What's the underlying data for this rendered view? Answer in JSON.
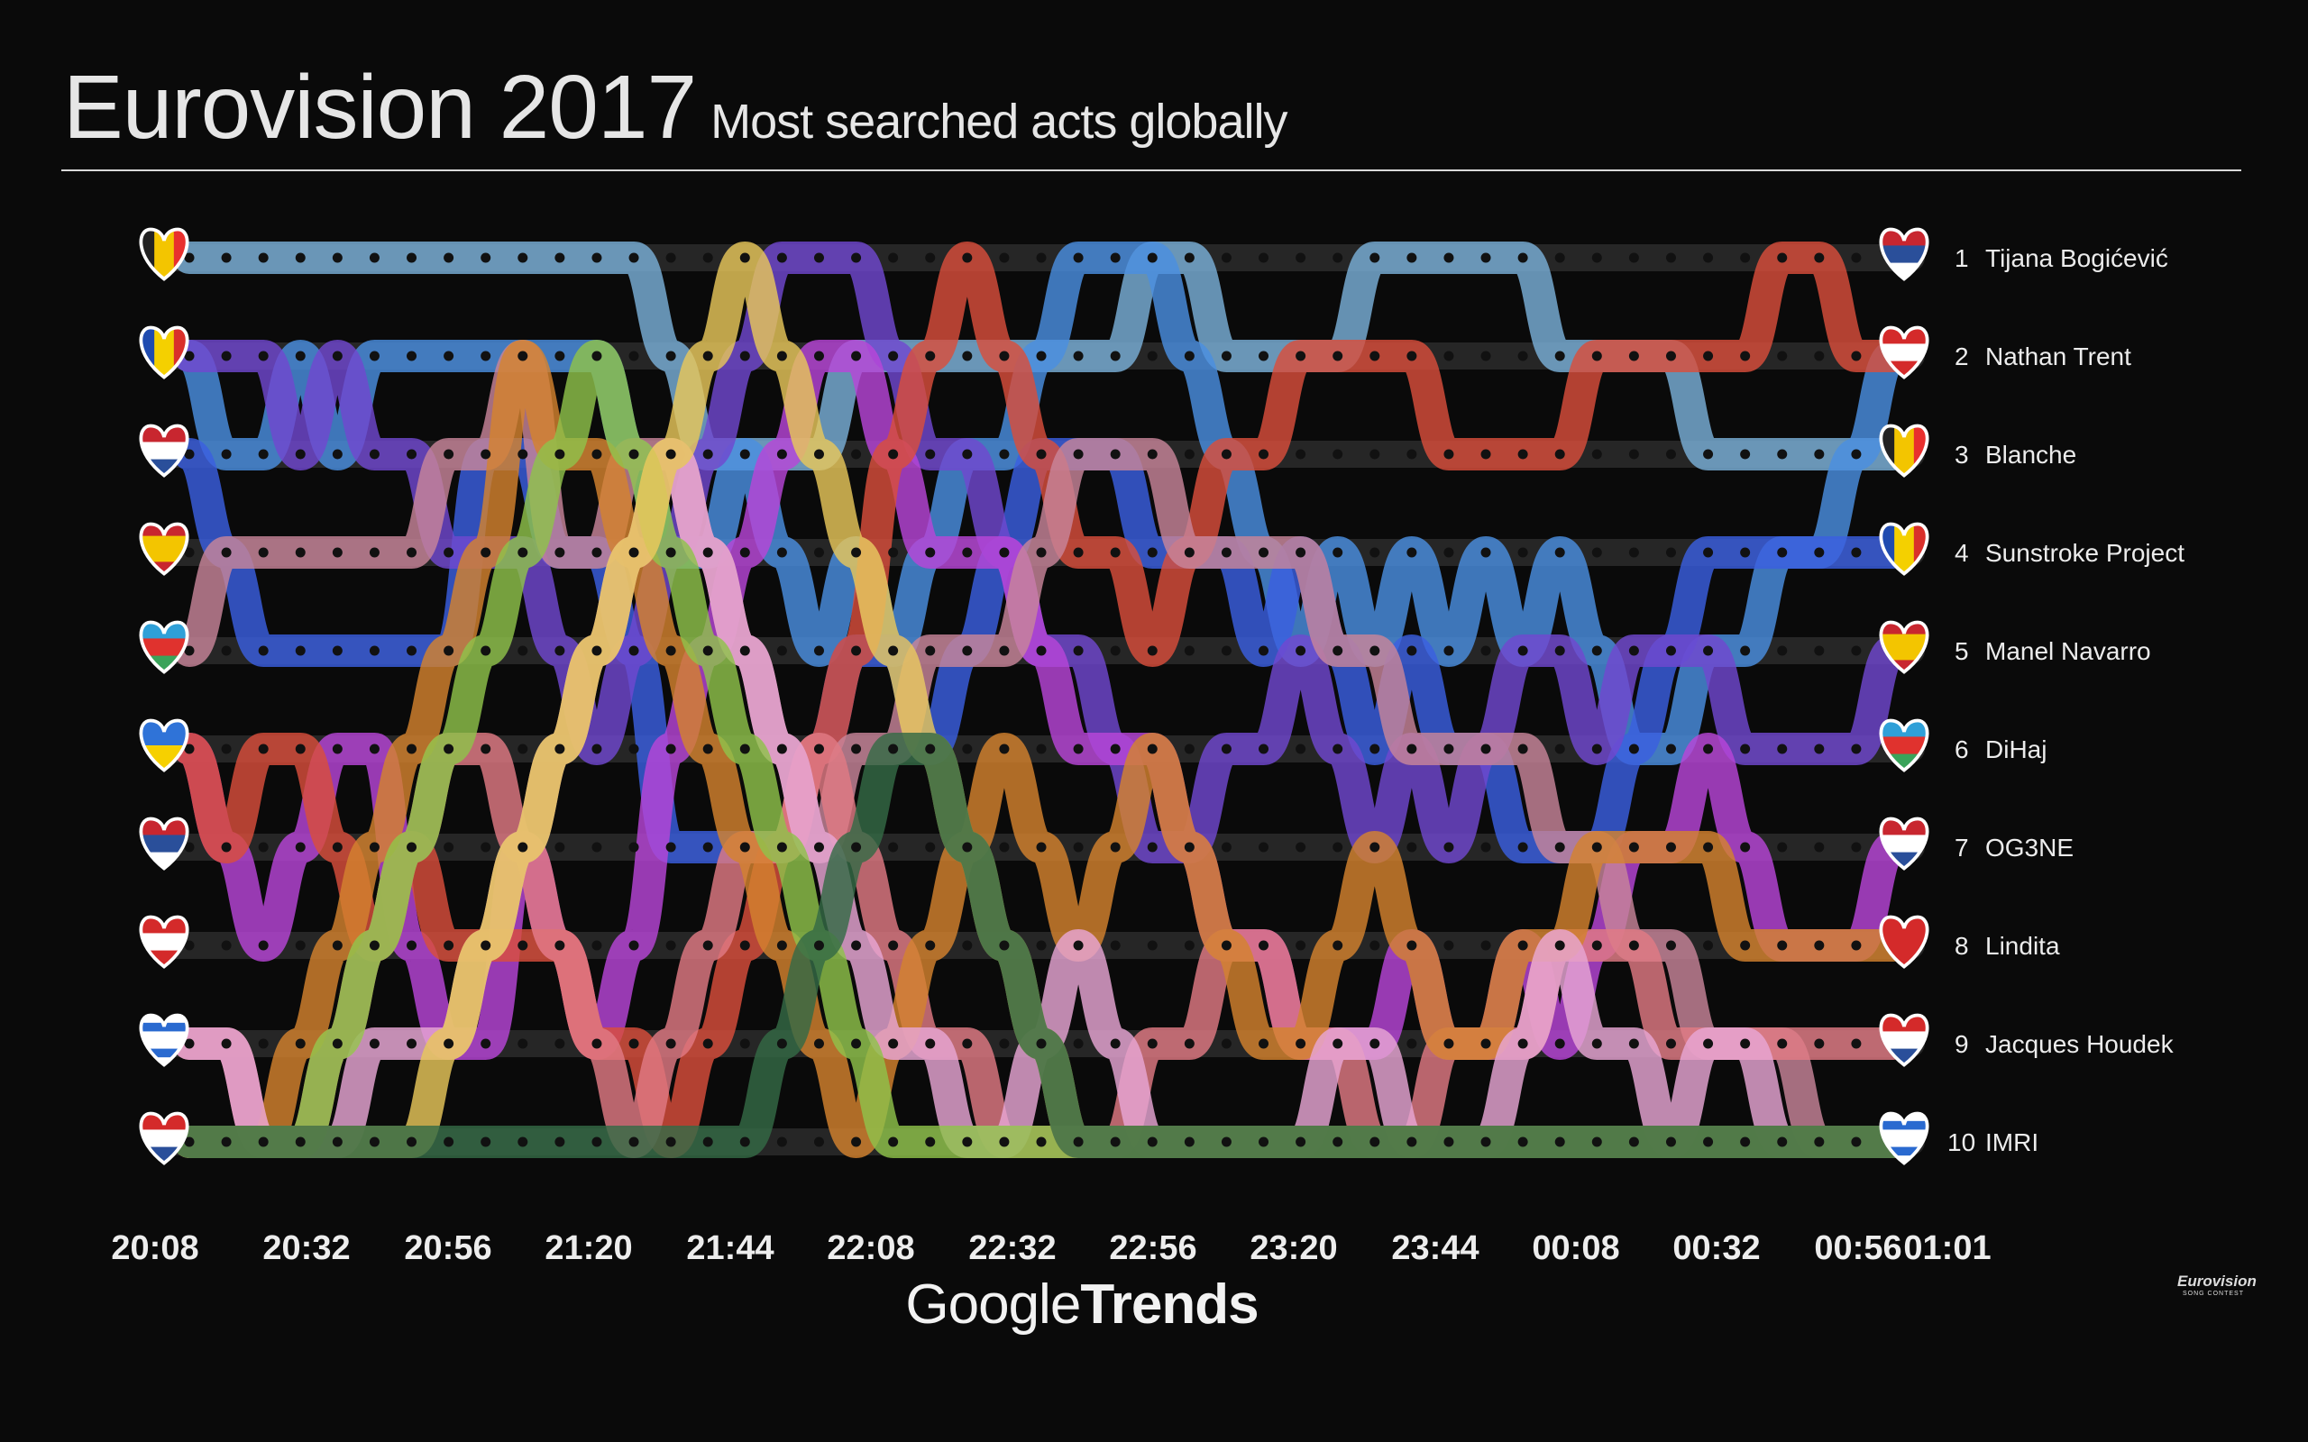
{
  "header": {
    "title": "Eurovision 2017",
    "subtitle": "Most searched acts globally"
  },
  "footer": {
    "brand_google": "Google",
    "brand_trends": "Trends",
    "event_logo": "Eurovision",
    "event_logo_sub": "SONG CONTEST"
  },
  "chart_data": {
    "type": "bump",
    "title": "Eurovision 2017",
    "subtitle": "Most searched acts globally",
    "x_ticks": [
      "20:08",
      "20:32",
      "20:56",
      "21:20",
      "21:44",
      "22:08",
      "22:32",
      "22:56",
      "23:20",
      "23:44",
      "00:08",
      "00:32",
      "00:56",
      "01:01"
    ],
    "rank_range": [
      1,
      10
    ],
    "start_labels": [
      {
        "rank": 1,
        "flag": "Belgium"
      },
      {
        "rank": 2,
        "flag": "Moldova"
      },
      {
        "rank": 3,
        "flag": "Netherlands"
      },
      {
        "rank": 4,
        "flag": "Spain"
      },
      {
        "rank": 5,
        "flag": "Azerbaijan"
      },
      {
        "rank": 6,
        "flag": "Ukraine"
      },
      {
        "rank": 7,
        "flag": "Serbia"
      },
      {
        "rank": 8,
        "flag": "Austria"
      },
      {
        "rank": 9,
        "flag": "Israel"
      },
      {
        "rank": 10,
        "flag": "Croatia"
      }
    ],
    "end_labels": [
      {
        "rank": 1,
        "rank_label": "1",
        "act": "Tijana Bogićević",
        "flag": "Serbia"
      },
      {
        "rank": 2,
        "rank_label": "2",
        "act": "Nathan Trent",
        "flag": "Austria"
      },
      {
        "rank": 3,
        "rank_label": "3",
        "act": "Blanche",
        "flag": "Belgium"
      },
      {
        "rank": 4,
        "rank_label": "4",
        "act": "Sunstroke Project",
        "flag": "Moldova"
      },
      {
        "rank": 5,
        "rank_label": "5",
        "act": "Manel Navarro",
        "flag": "Spain"
      },
      {
        "rank": 6,
        "rank_label": "6",
        "act": "DiHaj",
        "flag": "Azerbaijan"
      },
      {
        "rank": 7,
        "rank_label": "7",
        "act": "OG3NE",
        "flag": "Netherlands"
      },
      {
        "rank": 8,
        "rank_label": "8",
        "act": "Lindita",
        "flag": "Albania"
      },
      {
        "rank": 9,
        "rank_label": "9",
        "act": "Jacques Houdek",
        "flag": "Croatia"
      },
      {
        "rank": 10,
        "rank_label": "10",
        "act": "IMRI",
        "flag": "Israel"
      }
    ],
    "series": [
      {
        "color": "#7ab0d8",
        "ranks": [
          1,
          1,
          1,
          1,
          1,
          1,
          1,
          1,
          1,
          1,
          1,
          1,
          1,
          2,
          3,
          3,
          3,
          3,
          2,
          2,
          2,
          2,
          2,
          2,
          2,
          2,
          1,
          1,
          2,
          2,
          2,
          2,
          1,
          1,
          1,
          1,
          1,
          2,
          2,
          2,
          2,
          3,
          3,
          3,
          3,
          3,
          3
        ]
      },
      {
        "color": "#4a8fe0",
        "ranks": [
          2,
          3,
          3,
          2,
          3,
          2,
          2,
          2,
          2,
          2,
          2,
          2,
          3,
          4,
          4,
          3,
          4,
          5,
          4,
          5,
          4,
          3,
          3,
          2,
          1,
          1,
          1,
          2,
          3,
          4,
          5,
          4,
          5,
          4,
          5,
          4,
          5,
          4,
          5,
          6,
          6,
          5,
          5,
          4,
          4,
          3,
          2
        ]
      },
      {
        "color": "#3b5fe0",
        "ranks": [
          3,
          4,
          5,
          5,
          5,
          5,
          5,
          5,
          3,
          3,
          4,
          4,
          5,
          7,
          7,
          7,
          7,
          6,
          5,
          5,
          6,
          5,
          4,
          3,
          3,
          3,
          4,
          4,
          4,
          5,
          4,
          5,
          6,
          5,
          6,
          6,
          7,
          7,
          7,
          6,
          5,
          4,
          4,
          4,
          4,
          4,
          4
        ]
      },
      {
        "color": "#7048d0",
        "ranks": [
          2,
          2,
          2,
          3,
          2,
          3,
          3,
          4,
          4,
          4,
          5,
          6,
          5,
          4,
          3,
          2,
          1,
          1,
          1,
          2,
          3,
          3,
          4,
          5,
          5,
          6,
          7,
          7,
          6,
          6,
          5,
          6,
          7,
          6,
          7,
          6,
          5,
          5,
          6,
          5,
          5,
          5,
          6,
          6,
          6,
          6,
          5
        ]
      },
      {
        "color": "#b845d8",
        "ranks": [
          6,
          7,
          8,
          7,
          6,
          6,
          8,
          9,
          9,
          7,
          8,
          9,
          8,
          6,
          5,
          4,
          3,
          2,
          2,
          3,
          4,
          4,
          4,
          5,
          6,
          6,
          6,
          7,
          8,
          8,
          9,
          9,
          9,
          8,
          9,
          9,
          8,
          9,
          8,
          7,
          7,
          6,
          7,
          8,
          8,
          8,
          7
        ]
      },
      {
        "color": "#d94e3c",
        "ranks": [
          6,
          7,
          6,
          6,
          7,
          8,
          7,
          8,
          8,
          8,
          8,
          9,
          9,
          10,
          9,
          8,
          7,
          6,
          5,
          3,
          2,
          1,
          2,
          3,
          4,
          4,
          5,
          4,
          3,
          3,
          2,
          2,
          2,
          2,
          3,
          3,
          3,
          3,
          2,
          2,
          2,
          2,
          2,
          1,
          1,
          2,
          2
        ]
      },
      {
        "color": "#c8859a",
        "ranks": [
          5,
          4,
          4,
          4,
          4,
          4,
          4,
          3,
          3,
          2,
          4,
          4,
          3,
          3,
          4,
          5,
          6,
          7,
          6,
          6,
          5,
          5,
          5,
          4,
          3,
          3,
          3,
          4,
          4,
          4,
          4,
          5,
          5,
          6,
          6,
          6,
          6,
          7,
          7,
          8,
          8,
          9,
          9,
          9,
          10,
          10,
          10
        ]
      },
      {
        "color": "#e07a84",
        "ranks": [
          9,
          9,
          10,
          10,
          9,
          8,
          7,
          6,
          6,
          7,
          8,
          9,
          10,
          9,
          8,
          7,
          7,
          6,
          7,
          8,
          9,
          9,
          10,
          10,
          10,
          10,
          9,
          9,
          8,
          8,
          9,
          9,
          10,
          10,
          9,
          9,
          9,
          8,
          8,
          8,
          9,
          9,
          9,
          9,
          9,
          9,
          9
        ]
      },
      {
        "color": "#d4832e",
        "ranks": [
          10,
          10,
          10,
          9,
          8,
          7,
          6,
          5,
          4,
          2,
          3,
          3,
          4,
          5,
          6,
          7,
          8,
          9,
          10,
          9,
          8,
          7,
          6,
          7,
          8,
          7,
          6,
          7,
          8,
          9,
          9,
          8,
          7,
          8,
          9,
          9,
          8,
          8,
          7,
          7,
          7,
          7,
          8,
          8,
          8,
          8,
          8
        ]
      },
      {
        "color": "#e8a6d4",
        "ranks": [
          9,
          9,
          10,
          10,
          10,
          9,
          9,
          9,
          8,
          7,
          6,
          5,
          4,
          3,
          4,
          5,
          6,
          7,
          8,
          9,
          9,
          10,
          10,
          9,
          8,
          9,
          10,
          10,
          10,
          10,
          10,
          9,
          9,
          10,
          10,
          10,
          9,
          8,
          9,
          9,
          10,
          9,
          9,
          10,
          10,
          10,
          10
        ]
      },
      {
        "color": "#8fc24a",
        "ranks": [
          10,
          10,
          10,
          10,
          9,
          8,
          7,
          6,
          5,
          4,
          3,
          2,
          3,
          4,
          5,
          6,
          7,
          8,
          9,
          10,
          10,
          10,
          10,
          10,
          10,
          10,
          10,
          10,
          10,
          10,
          10,
          10,
          10,
          10,
          10,
          10,
          10,
          10,
          10,
          10,
          10,
          10,
          10,
          10,
          10,
          10,
          10
        ]
      },
      {
        "color": "#e8c75a",
        "ranks": [
          10,
          10,
          10,
          10,
          10,
          10,
          10,
          9,
          8,
          7,
          6,
          5,
          4,
          3,
          2,
          1,
          2,
          3,
          4,
          5,
          6,
          7,
          8,
          9,
          10,
          10,
          10,
          10,
          10,
          10,
          10,
          10,
          10,
          10,
          10,
          10,
          10,
          10,
          10,
          10,
          10,
          10,
          10,
          10,
          10,
          10,
          10
        ]
      },
      {
        "color": "#356a45",
        "ranks": [
          10,
          10,
          10,
          10,
          10,
          10,
          10,
          10,
          10,
          10,
          10,
          10,
          10,
          10,
          10,
          10,
          9,
          8,
          7,
          6,
          6,
          7,
          8,
          9,
          10,
          10,
          10,
          10,
          10,
          10,
          10,
          10,
          10,
          10,
          10,
          10,
          10,
          10,
          10,
          10,
          10,
          10,
          10,
          10,
          10,
          10,
          10
        ]
      }
    ]
  }
}
